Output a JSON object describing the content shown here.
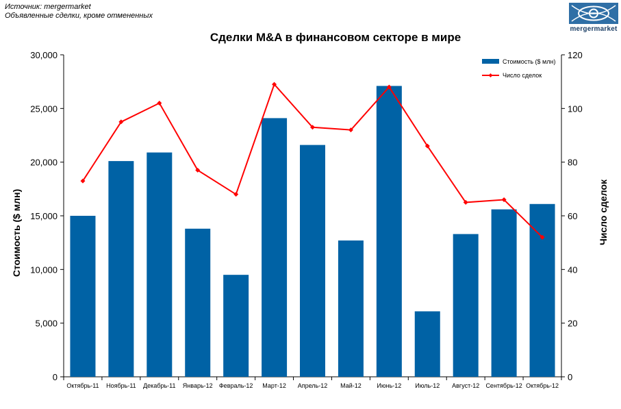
{
  "source": {
    "line1": "Источник: mergermarket",
    "line2": "Объявленные сделки, кроме отмененных"
  },
  "logo": {
    "text": "mergermarket",
    "icon": "eye-globe-icon"
  },
  "chart_data": {
    "type": "bar",
    "title": "Сделки M&A в финансовом секторе в мире",
    "categories": [
      "Октябрь-11",
      "Ноябрь-11",
      "Декабрь-11",
      "Январь-12",
      "Февраль-12",
      "Март-12",
      "Апрель-12",
      "Май-12",
      "Июнь-12",
      "Июль-12",
      "Август-12",
      "Сентябрь-12",
      "Октябрь-12"
    ],
    "series": [
      {
        "name": "Стоимость ($ млн)",
        "type": "bar",
        "axis": "left",
        "color": "#0062a5",
        "values": [
          15000,
          20100,
          20900,
          13800,
          9500,
          24100,
          21600,
          12700,
          27100,
          6100,
          13300,
          15600,
          16100
        ]
      },
      {
        "name": "Число сделок",
        "type": "line",
        "axis": "right",
        "color": "#ff0000",
        "values": [
          73,
          95,
          102,
          77,
          68,
          109,
          93,
          92,
          108,
          86,
          65,
          66,
          52
        ]
      }
    ],
    "ylabel": "Стоимость  ($ млн)",
    "y2label": "Число сделок",
    "ylim": [
      0,
      30000
    ],
    "y2lim": [
      0,
      120
    ],
    "yticks": [
      "0",
      "5,000",
      "10,000",
      "15,000",
      "20,000",
      "25,000",
      "30,000"
    ],
    "y2ticks": [
      "0",
      "20",
      "40",
      "60",
      "80",
      "100",
      "120"
    ],
    "grid": false,
    "legend": "top-right"
  }
}
